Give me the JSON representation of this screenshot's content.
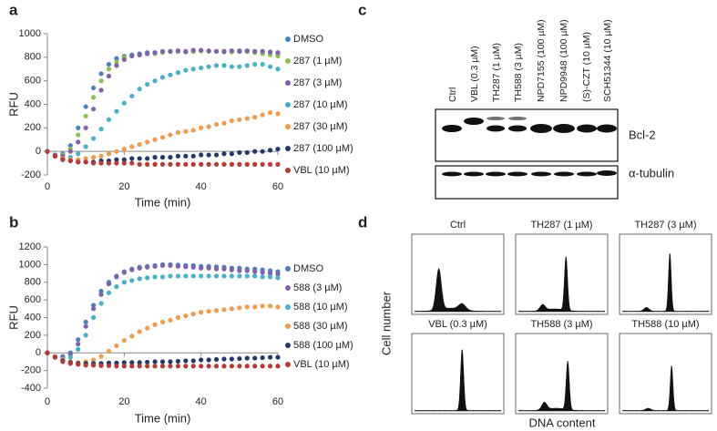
{
  "panel_labels": [
    "a",
    "b",
    "c",
    "d"
  ],
  "chart_data": [
    {
      "type": "scatter",
      "x_label": "Time (min)",
      "y_label": "RFU",
      "x": [
        0,
        2,
        4,
        6,
        8,
        10,
        12,
        14,
        16,
        18,
        20,
        22,
        24,
        26,
        28,
        30,
        32,
        34,
        36,
        38,
        40,
        42,
        44,
        46,
        48,
        50,
        52,
        54,
        56,
        58,
        60
      ],
      "xlim": [
        0,
        60
      ],
      "xticks": [
        0,
        20,
        40,
        60
      ],
      "ylim": [
        -200,
        1000
      ],
      "yticks": [
        -200,
        0,
        200,
        400,
        600,
        800,
        1000
      ],
      "series": [
        {
          "name": "DMSO",
          "color": "#4a7fc1",
          "values": [
            0,
            -30,
            -20,
            50,
            200,
            380,
            540,
            660,
            740,
            790,
            810,
            820,
            830,
            840,
            835,
            845,
            850,
            850,
            845,
            850,
            855,
            850,
            850,
            845,
            850,
            855,
            850,
            845,
            850,
            840,
            830
          ]
        },
        {
          "name": "287 (1 µM)",
          "color": "#8cc152",
          "values": [
            0,
            -30,
            -30,
            20,
            140,
            300,
            460,
            600,
            700,
            760,
            800,
            810,
            820,
            830,
            830,
            840,
            850,
            850,
            850,
            850,
            855,
            850,
            850,
            850,
            845,
            850,
            850,
            840,
            830,
            820,
            810
          ]
        },
        {
          "name": "287 (3 µM)",
          "color": "#8061ad",
          "values": [
            0,
            -30,
            -40,
            0,
            80,
            200,
            360,
            520,
            640,
            730,
            780,
            810,
            820,
            830,
            840,
            850,
            850,
            855,
            850,
            860,
            860,
            855,
            850,
            850,
            855,
            850,
            855,
            850,
            850,
            845,
            840
          ]
        },
        {
          "name": "287 (10 µM)",
          "color": "#46b1c9",
          "values": [
            0,
            -40,
            -60,
            -50,
            -20,
            40,
            110,
            190,
            270,
            340,
            410,
            470,
            530,
            570,
            600,
            630,
            650,
            670,
            690,
            700,
            710,
            720,
            730,
            730,
            720,
            720,
            730,
            740,
            740,
            720,
            700
          ]
        },
        {
          "name": "287 (30 µM)",
          "color": "#f59a4a",
          "values": [
            0,
            -40,
            -60,
            -70,
            -70,
            -60,
            -50,
            -40,
            -20,
            0,
            20,
            40,
            60,
            80,
            100,
            120,
            140,
            160,
            170,
            180,
            200,
            210,
            230,
            240,
            260,
            270,
            280,
            290,
            310,
            330,
            320
          ]
        },
        {
          "name": "287 (100 µM)",
          "color": "#22396b",
          "values": [
            0,
            -40,
            -70,
            -80,
            -90,
            -90,
            -90,
            -80,
            -80,
            -70,
            -70,
            -60,
            -60,
            -60,
            -50,
            -50,
            -50,
            -40,
            -40,
            -40,
            -30,
            -30,
            -30,
            -20,
            -20,
            -10,
            -10,
            0,
            0,
            10,
            20
          ]
        },
        {
          "name": "VBL (10 µM)",
          "color": "#b83a33",
          "values": [
            0,
            -40,
            -70,
            -80,
            -90,
            -90,
            -100,
            -100,
            -100,
            -100,
            -100,
            -100,
            -110,
            -110,
            -110,
            -110,
            -110,
            -110,
            -110,
            -110,
            -110,
            -110,
            -110,
            -110,
            -110,
            -110,
            -110,
            -110,
            -110,
            -110,
            -110
          ]
        }
      ]
    },
    {
      "type": "scatter",
      "x_label": "Time (min)",
      "y_label": "RFU",
      "x": [
        0,
        2,
        4,
        6,
        8,
        10,
        12,
        14,
        16,
        18,
        20,
        22,
        24,
        26,
        28,
        30,
        32,
        34,
        36,
        38,
        40,
        42,
        44,
        46,
        48,
        50,
        52,
        54,
        56,
        58,
        60
      ],
      "xlim": [
        0,
        60
      ],
      "xticks": [
        0,
        20,
        40,
        60
      ],
      "ylim": [
        -400,
        1200
      ],
      "yticks": [
        -400,
        -200,
        0,
        200,
        400,
        600,
        800,
        1000,
        1200
      ],
      "series": [
        {
          "name": "DMSO",
          "color": "#4a7fc1",
          "values": [
            0,
            -40,
            -40,
            0,
            150,
            350,
            540,
            700,
            800,
            870,
            920,
            950,
            970,
            980,
            990,
            1000,
            1000,
            995,
            990,
            990,
            980,
            980,
            975,
            970,
            960,
            960,
            950,
            950,
            940,
            930,
            920
          ]
        },
        {
          "name": "588 (3 µM)",
          "color": "#8061ad",
          "values": [
            0,
            -40,
            -60,
            -20,
            100,
            300,
            500,
            660,
            780,
            860,
            910,
            940,
            960,
            970,
            980,
            990,
            990,
            980,
            975,
            970,
            960,
            960,
            950,
            950,
            940,
            930,
            930,
            920,
            910,
            900,
            890
          ]
        },
        {
          "name": "588 (10 µM)",
          "color": "#46b1c9",
          "values": [
            0,
            -50,
            -70,
            -50,
            40,
            200,
            400,
            560,
            680,
            750,
            800,
            820,
            840,
            850,
            860,
            860,
            870,
            870,
            870,
            870,
            870,
            870,
            870,
            870,
            870,
            870,
            870,
            870,
            860,
            860,
            850
          ]
        },
        {
          "name": "588 (30 µM)",
          "color": "#f59a4a",
          "values": [
            0,
            -40,
            -80,
            -100,
            -110,
            -100,
            -80,
            -40,
            20,
            80,
            140,
            190,
            240,
            280,
            320,
            350,
            370,
            400,
            420,
            440,
            460,
            470,
            480,
            490,
            500,
            510,
            520,
            520,
            530,
            530,
            520
          ]
        },
        {
          "name": "588 (100 µM)",
          "color": "#22396b",
          "values": [
            0,
            -50,
            -90,
            -110,
            -120,
            -120,
            -120,
            -120,
            -115,
            -115,
            -110,
            -110,
            -110,
            -105,
            -100,
            -100,
            -100,
            -95,
            -90,
            -90,
            -80,
            -80,
            -75,
            -70,
            -70,
            -65,
            -60,
            -60,
            -55,
            -50,
            -50
          ]
        },
        {
          "name": "VBL (10 µM)",
          "color": "#b83a33",
          "values": [
            0,
            -50,
            -100,
            -120,
            -130,
            -140,
            -140,
            -145,
            -145,
            -150,
            -150,
            -150,
            -150,
            -150,
            -150,
            -150,
            -150,
            -150,
            -150,
            -150,
            -150,
            -150,
            -150,
            -150,
            -150,
            -150,
            -150,
            -150,
            -150,
            -150,
            -150
          ]
        }
      ]
    }
  ],
  "blot": {
    "lanes": [
      "Ctrl",
      "VBL (0.3 µM)",
      "TH287 (1 µM)",
      "TH588 (3 µM)",
      "NPD7155 (100 µM)",
      "NPD9948 (100 µM)",
      "(S)-CZT (10 µM)",
      "SCH51344 (10 µM)"
    ],
    "bands": [
      "Bcl-2",
      "α-tubulin"
    ]
  },
  "flow": {
    "y_label": "Cell number",
    "x_label": "DNA content",
    "panels": [
      "Ctrl",
      "TH287 (1 µM)",
      "TH287 (3 µM)",
      "VBL (0.3 µM)",
      "TH588 (3 µM)",
      "TH588 (10 µM)"
    ]
  }
}
